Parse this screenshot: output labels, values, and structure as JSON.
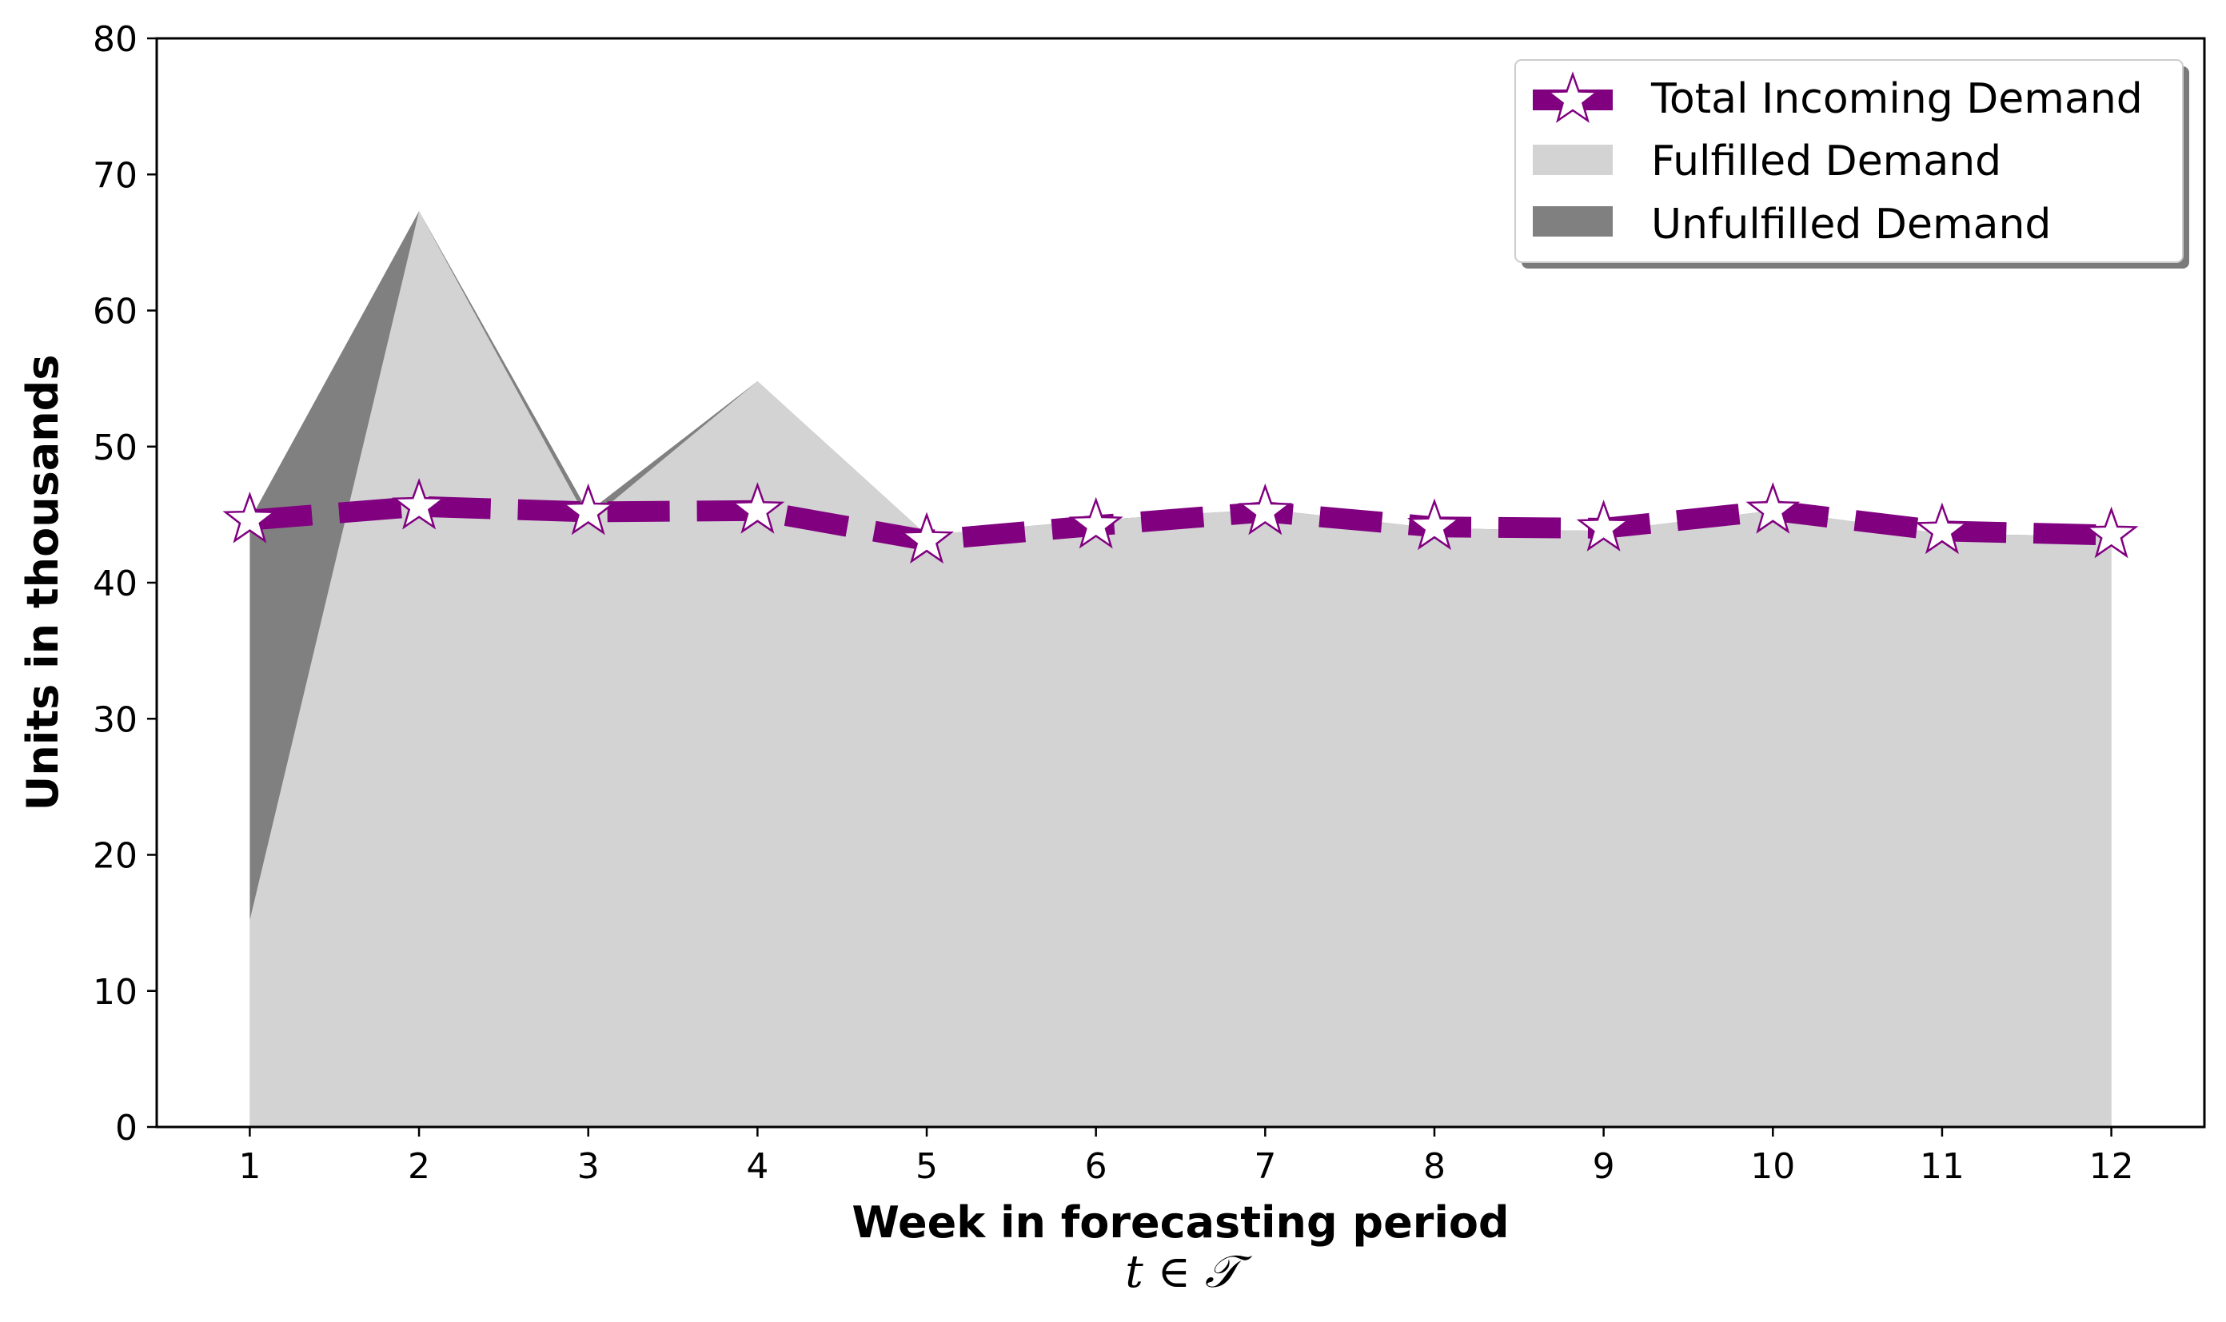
{
  "chart_data": {
    "type": "area",
    "xlabel": "Week in forecasting period",
    "xlabel_sub": "t ∈ 𝒯",
    "ylabel": "Units in thousands",
    "xlim": [
      0.45,
      12.55
    ],
    "ylim": [
      0,
      80
    ],
    "x": [
      1,
      2,
      3,
      4,
      5,
      6,
      7,
      8,
      9,
      10,
      11,
      12
    ],
    "xticks": [
      "1",
      "2",
      "3",
      "4",
      "5",
      "6",
      "7",
      "8",
      "9",
      "10",
      "11",
      "12"
    ],
    "yticks": [
      "0",
      "10",
      "20",
      "30",
      "40",
      "50",
      "60",
      "70",
      "80"
    ],
    "grid": false,
    "legend_position": "top-right",
    "series": [
      {
        "name": "Total Incoming Demand",
        "kind": "line",
        "style": "dashed",
        "marker": "star",
        "color": "#800080",
        "values": [
          44.6,
          45.6,
          45.2,
          45.3,
          43.1,
          44.2,
          45.2,
          44.1,
          44.0,
          45.3,
          43.8,
          43.5
        ]
      },
      {
        "name": "Fulfilled Demand",
        "kind": "area",
        "color": "#d3d3d3",
        "values": [
          15.2,
          67.3,
          44.5,
          54.8,
          43.5,
          44.6,
          45.4,
          44.0,
          43.8,
          45.3,
          43.6,
          43.4
        ]
      },
      {
        "name": "Unfulfilled Demand",
        "kind": "area",
        "color": "#808080",
        "values": [
          44.6,
          67.3,
          45.2,
          54.8,
          43.5,
          44.6,
          45.4,
          44.0,
          43.8,
          45.3,
          43.6,
          43.4
        ]
      }
    ]
  }
}
